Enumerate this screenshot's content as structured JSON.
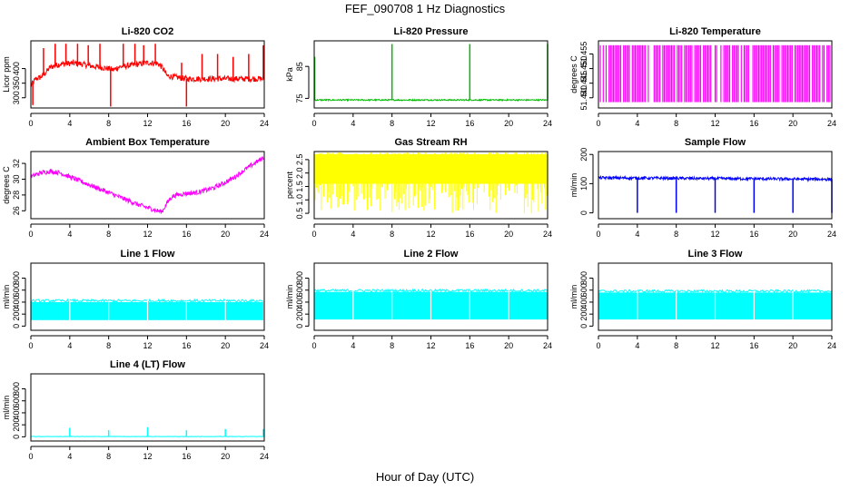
{
  "figure": {
    "title": "FEF_090708  1 Hz Diagnostics",
    "xlabel": "Hour of Day (UTC)"
  },
  "chart_data": [
    {
      "type": "line",
      "title": "Li-820 CO2",
      "ylabel": "Licor ppm",
      "color": "#ff0000",
      "xlim": [
        0,
        24
      ],
      "x_ticks": [
        0,
        4,
        8,
        12,
        16,
        20,
        24
      ],
      "ylim": [
        265,
        495
      ],
      "y_ticks": [
        300,
        350,
        400
      ],
      "baseline": [
        [
          0,
          340
        ],
        [
          0.5,
          365
        ],
        [
          1,
          370
        ],
        [
          1.5,
          385
        ],
        [
          2,
          405
        ],
        [
          3,
          415
        ],
        [
          4,
          418
        ],
        [
          5,
          417
        ],
        [
          6,
          410
        ],
        [
          7,
          405
        ],
        [
          8,
          400
        ],
        [
          8.5,
          395
        ],
        [
          9,
          405
        ],
        [
          10,
          410
        ],
        [
          11,
          415
        ],
        [
          12,
          420
        ],
        [
          13,
          418
        ],
        [
          13.5,
          405
        ],
        [
          14,
          375
        ],
        [
          16,
          365
        ],
        [
          20,
          365
        ],
        [
          24,
          365
        ]
      ],
      "noise": 10,
      "spikes": [
        {
          "x": 0.2,
          "y": 275
        },
        {
          "x": 1.3,
          "y": 470
        },
        {
          "x": 2.5,
          "y": 485
        },
        {
          "x": 3.6,
          "y": 485
        },
        {
          "x": 4.8,
          "y": 485
        },
        {
          "x": 5.9,
          "y": 480
        },
        {
          "x": 7.1,
          "y": 485
        },
        {
          "x": 8.2,
          "y": 270
        },
        {
          "x": 9.5,
          "y": 485
        },
        {
          "x": 10.7,
          "y": 485
        },
        {
          "x": 11.6,
          "y": 480
        },
        {
          "x": 12.8,
          "y": 485
        },
        {
          "x": 15.5,
          "y": 420
        },
        {
          "x": 16.0,
          "y": 270
        },
        {
          "x": 17.6,
          "y": 450
        },
        {
          "x": 19.2,
          "y": 450
        },
        {
          "x": 20.8,
          "y": 440
        },
        {
          "x": 22.4,
          "y": 450
        },
        {
          "x": 23.9,
          "y": 480
        }
      ]
    },
    {
      "type": "line",
      "title": "Li-820 Pressure",
      "ylabel": "kPa",
      "color": "#00bb00",
      "xlim": [
        0,
        24
      ],
      "x_ticks": [
        0,
        4,
        8,
        12,
        16,
        20,
        24
      ],
      "ylim": [
        72,
        93
      ],
      "y_ticks": [
        75,
        85
      ],
      "baseline": [
        [
          0,
          74.5
        ],
        [
          24,
          74.5
        ]
      ],
      "noise": 0.2,
      "spikes": [
        {
          "x": 0.05,
          "y": 88
        },
        {
          "x": 8.0,
          "y": 92
        },
        {
          "x": 16.0,
          "y": 92
        },
        {
          "x": 24.0,
          "y": 92
        }
      ]
    },
    {
      "type": "line",
      "title": "Li-820 Temperature",
      "ylabel": "degrees C",
      "color": "#ff00ff",
      "xlim": [
        0,
        24
      ],
      "x_ticks": [
        0,
        4,
        8,
        12,
        16,
        20,
        24
      ],
      "ylim": [
        51.4365,
        51.4595
      ],
      "y_ticks": [
        51.44,
        51.445,
        51.45,
        51.455
      ],
      "y_tick_labels": [
        "51.440",
        "51.445",
        "51.450",
        "51.455"
      ],
      "levels": [
        51.4385,
        51.458
      ],
      "span": [
        0.2,
        23.9
      ]
    },
    {
      "type": "line",
      "title": "Ambient Box Temperature",
      "ylabel": "degrees C",
      "color": "#ff00ff",
      "xlim": [
        0,
        24
      ],
      "x_ticks": [
        0,
        4,
        8,
        12,
        16,
        20,
        24
      ],
      "ylim": [
        25,
        33.5
      ],
      "y_ticks": [
        26,
        28,
        30,
        32
      ],
      "baseline": [
        [
          0,
          30.3
        ],
        [
          1,
          30.8
        ],
        [
          2,
          31.0
        ],
        [
          3,
          30.8
        ],
        [
          4,
          30.3
        ],
        [
          5,
          29.8
        ],
        [
          6,
          29.3
        ],
        [
          7,
          28.8
        ],
        [
          8,
          28.3
        ],
        [
          9,
          27.8
        ],
        [
          10,
          27.3
        ],
        [
          11,
          26.8
        ],
        [
          12,
          26.4
        ],
        [
          13,
          26.0
        ],
        [
          13.5,
          25.9
        ],
        [
          14,
          27.0
        ],
        [
          14.5,
          27.8
        ],
        [
          15,
          28.0
        ],
        [
          16,
          28.2
        ],
        [
          17,
          28.3
        ],
        [
          18,
          28.6
        ],
        [
          19,
          29.0
        ],
        [
          20,
          29.6
        ],
        [
          21,
          30.3
        ],
        [
          22,
          31.2
        ],
        [
          23,
          32.0
        ],
        [
          24,
          32.8
        ]
      ],
      "noise": 0.3
    },
    {
      "type": "line",
      "title": "Gas Stream RH",
      "ylabel": "percent",
      "color": "#ffff00",
      "xlim": [
        0,
        24
      ],
      "x_ticks": [
        0,
        4,
        8,
        12,
        16,
        20,
        24
      ],
      "ylim": [
        0.3,
        2.8
      ],
      "y_ticks": [
        0.5,
        1.0,
        1.5,
        2.0,
        2.5
      ],
      "y_tick_labels": [
        "0.5",
        "1.0",
        "1.5",
        "2.0",
        "2.5"
      ],
      "band": [
        1.6,
        2.7
      ],
      "dips_to": 0.5,
      "span": [
        0,
        24
      ]
    },
    {
      "type": "line",
      "title": "Sample Flow",
      "ylabel": "ml/min",
      "color": "#0000ff",
      "xlim": [
        0,
        24
      ],
      "x_ticks": [
        0,
        4,
        8,
        12,
        16,
        20,
        24
      ],
      "ylim": [
        -20,
        210
      ],
      "y_ticks": [
        0,
        100,
        200
      ],
      "baseline": [
        [
          0,
          120
        ],
        [
          24,
          115
        ]
      ],
      "noise": 5,
      "spikes": [
        {
          "x": 4.0,
          "y": 0
        },
        {
          "x": 8.0,
          "y": 0
        },
        {
          "x": 12.0,
          "y": 0
        },
        {
          "x": 16.0,
          "y": 0
        },
        {
          "x": 20.0,
          "y": 0
        },
        {
          "x": 24.0,
          "y": 0
        }
      ]
    },
    {
      "type": "area",
      "title": "Line 1 Flow",
      "ylabel": "ml/min",
      "color": "#00ffff",
      "xlim": [
        0,
        24
      ],
      "x_ticks": [
        0,
        4,
        8,
        12,
        16,
        20,
        24
      ],
      "ylim": [
        -70,
        1050
      ],
      "y_ticks": [
        0,
        200,
        400,
        600,
        800
      ],
      "band": [
        100,
        400
      ],
      "span": [
        0,
        23.9
      ],
      "gaps": [
        4,
        8,
        12,
        16,
        20
      ]
    },
    {
      "type": "area",
      "title": "Line 2 Flow",
      "ylabel": "ml/min",
      "color": "#00ffff",
      "xlim": [
        0,
        24
      ],
      "x_ticks": [
        0,
        4,
        8,
        12,
        16,
        20,
        24
      ],
      "ylim": [
        -70,
        1050
      ],
      "y_ticks": [
        0,
        200,
        400,
        600,
        800
      ],
      "band": [
        110,
        570
      ],
      "span": [
        0,
        24
      ],
      "gaps": [
        4,
        8,
        12,
        16,
        20
      ]
    },
    {
      "type": "area",
      "title": "Line 3 Flow",
      "ylabel": "ml/min",
      "color": "#00ffff",
      "xlim": [
        0,
        24
      ],
      "x_ticks": [
        0,
        4,
        8,
        12,
        16,
        20,
        24
      ],
      "ylim": [
        -70,
        1050
      ],
      "y_ticks": [
        0,
        200,
        400,
        600,
        800
      ],
      "band": [
        110,
        560
      ],
      "span": [
        0,
        24
      ],
      "gaps": [
        4,
        8,
        12,
        16,
        20
      ]
    },
    {
      "type": "line",
      "title": "Line 4 (LT) Flow",
      "ylabel": "ml/min",
      "color": "#00ffff",
      "xlim": [
        0,
        24
      ],
      "x_ticks": [
        0,
        4,
        8,
        12,
        16,
        20,
        24
      ],
      "ylim": [
        -70,
        1050
      ],
      "y_ticks": [
        0,
        200,
        400,
        600,
        800
      ],
      "baseline": [
        [
          0,
          5
        ],
        [
          24,
          5
        ]
      ],
      "noise": 3,
      "spikes": [
        {
          "x": 4.0,
          "y": 150
        },
        {
          "x": 8.0,
          "y": 110
        },
        {
          "x": 12.0,
          "y": 160
        },
        {
          "x": 16.0,
          "y": 110
        },
        {
          "x": 20.0,
          "y": 130
        },
        {
          "x": 23.9,
          "y": 130
        }
      ]
    }
  ]
}
